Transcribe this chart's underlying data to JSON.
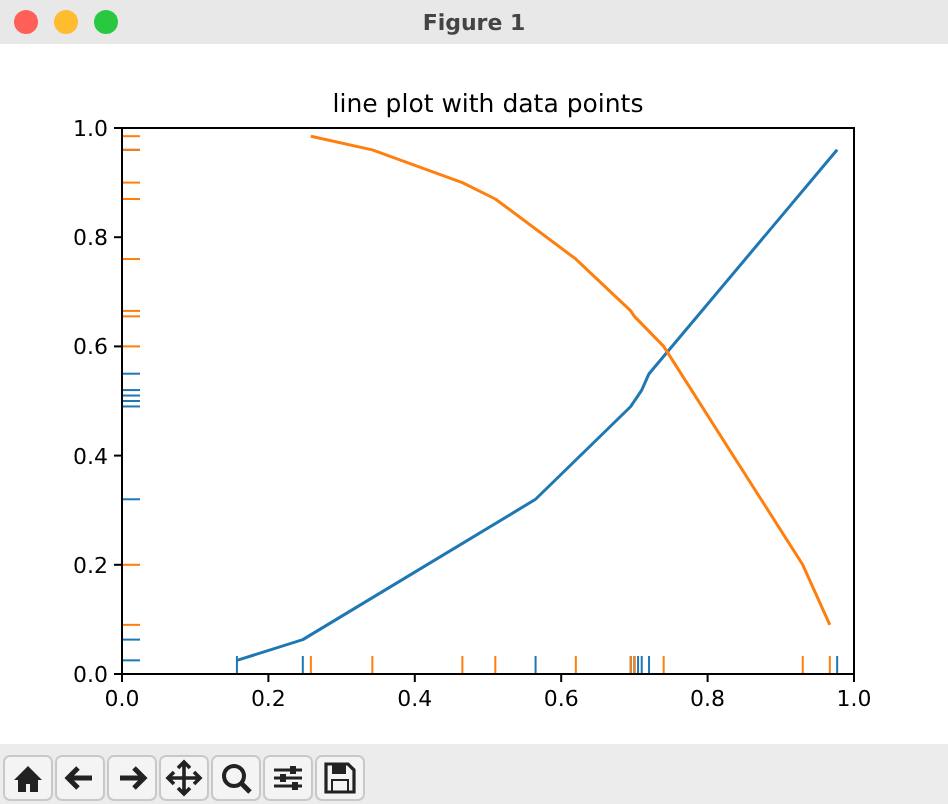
{
  "chart_data": {
    "type": "line",
    "title": "line plot with data points",
    "annotations": [
      "Figure 1"
    ],
    "xlim": [
      0,
      1
    ],
    "ylim": [
      0,
      1
    ],
    "xticks": [
      {
        "value": 0,
        "label": "0.0"
      },
      {
        "value": 0.2,
        "label": "0.2"
      },
      {
        "value": 0.4,
        "label": "0.4"
      },
      {
        "value": 0.6,
        "label": "0.6"
      },
      {
        "value": 0.8,
        "label": "0.8"
      },
      {
        "value": 1,
        "label": "1.0"
      }
    ],
    "yticks": [
      {
        "value": 0,
        "label": "0.0"
      },
      {
        "value": 0.2,
        "label": "0.2"
      },
      {
        "value": 0.4,
        "label": "0.4"
      },
      {
        "value": 0.6,
        "label": "0.6"
      },
      {
        "value": 0.8,
        "label": "0.8"
      },
      {
        "value": 1,
        "label": "1.0"
      }
    ],
    "grid": false,
    "marker": "none",
    "line_style": "solid",
    "series": [
      {
        "color": "#1f77b4",
        "x": [
          0.157,
          0.247,
          0.565,
          0.695,
          0.7,
          0.705,
          0.71,
          0.72,
          0.977
        ],
        "values": [
          0.025,
          0.063,
          0.32,
          0.49,
          0.5,
          0.51,
          0.52,
          0.55,
          0.96
        ]
      },
      {
        "color": "#ff7f0e",
        "x": [
          0.258,
          0.342,
          0.465,
          0.51,
          0.62,
          0.695,
          0.7,
          0.74,
          0.93,
          0.967
        ],
        "values": [
          0.985,
          0.96,
          0.9,
          0.87,
          0.76,
          0.665,
          0.655,
          0.6,
          0.2,
          0.09
        ]
      }
    ]
  }
}
